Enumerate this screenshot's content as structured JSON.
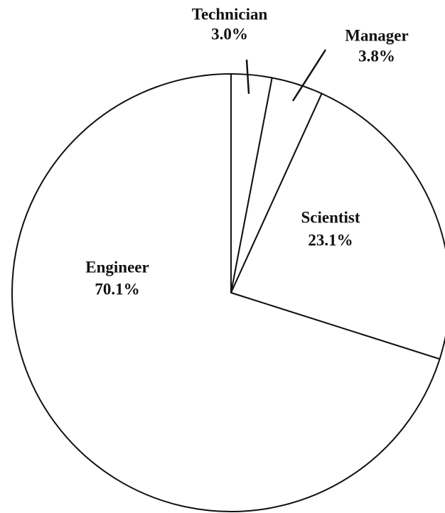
{
  "chart_data": {
    "type": "pie",
    "categories": [
      "Technician",
      "Manager",
      "Scientist",
      "Engineer"
    ],
    "values": [
      3.0,
      3.8,
      23.1,
      70.1
    ],
    "value_labels": [
      "3.0%",
      "3.8%",
      "23.1%",
      "70.1%"
    ],
    "color": "#ffffff"
  }
}
